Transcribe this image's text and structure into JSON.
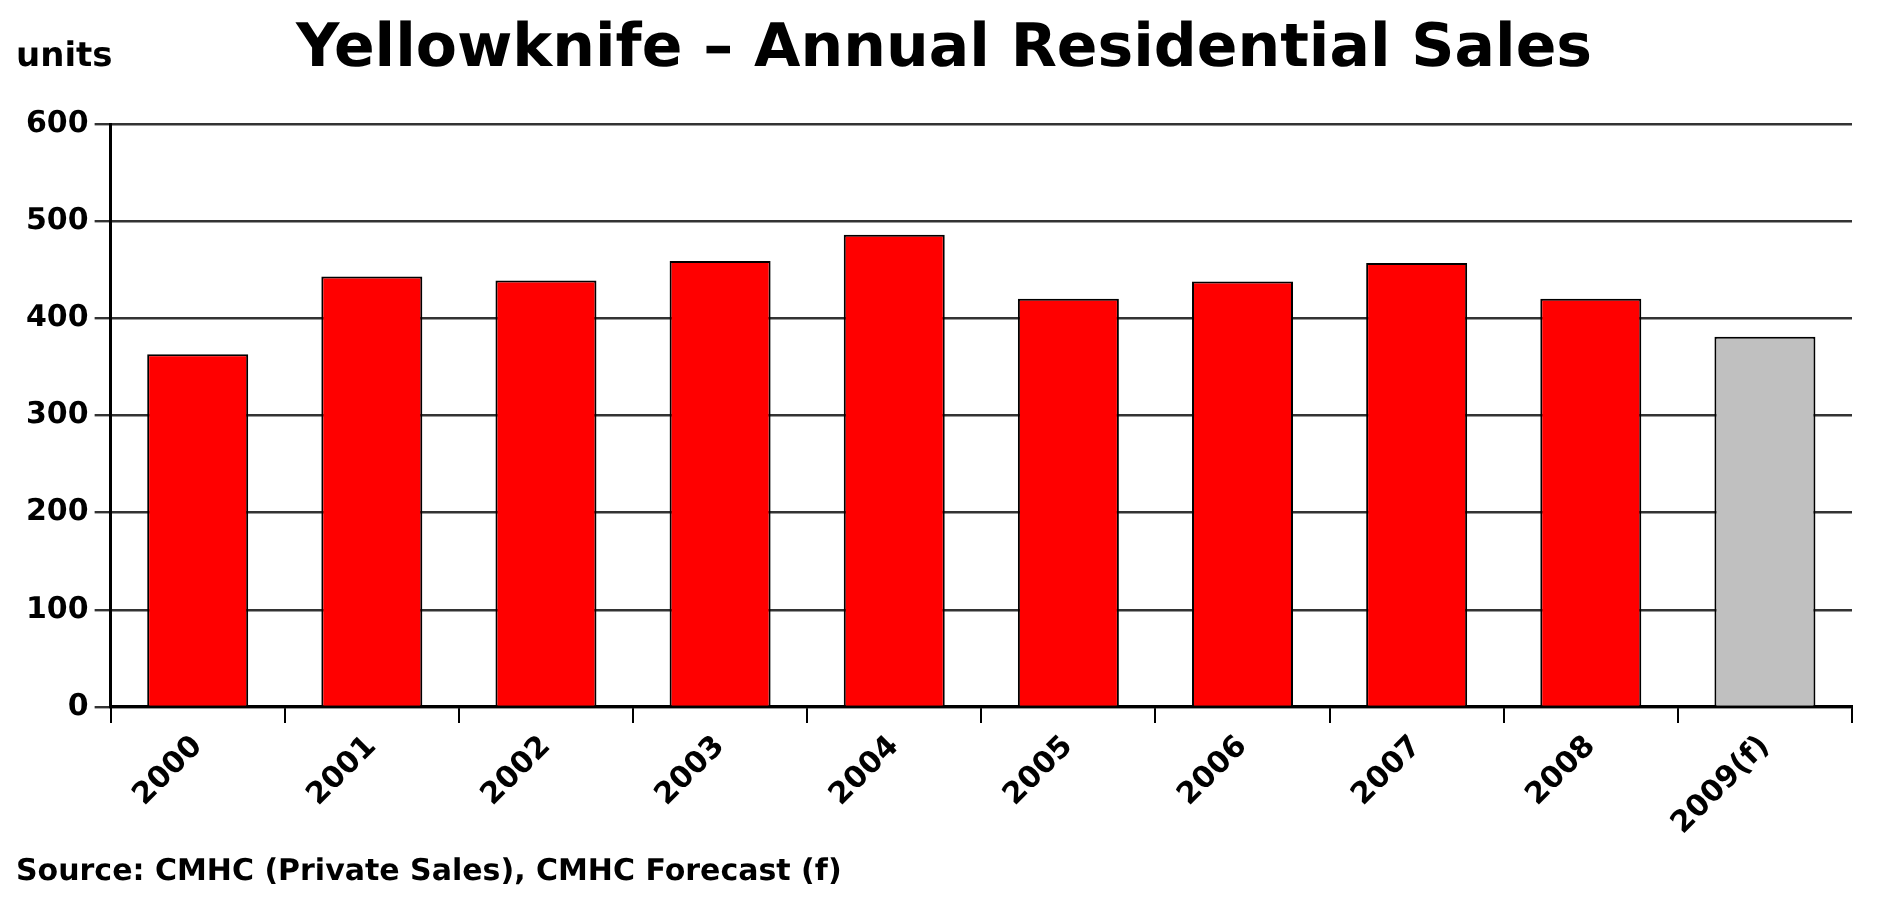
{
  "chart_data": {
    "type": "bar",
    "title": "Yellowknife – Annual Residential Sales",
    "ylabel": "units",
    "categories": [
      "2000",
      "2001",
      "2002",
      "2003",
      "2004",
      "2005",
      "2006",
      "2007",
      "2008",
      "2009(f)"
    ],
    "values": [
      363,
      443,
      439,
      459,
      486,
      420,
      438,
      457,
      420,
      381
    ],
    "colors": [
      "#ff0000",
      "#ff0000",
      "#ff0000",
      "#ff0000",
      "#ff0000",
      "#ff0000",
      "#ff0000",
      "#ff0000",
      "#ff0000",
      "#c0c0c0"
    ],
    "ylim": [
      0,
      600
    ],
    "yticks": [
      0,
      100,
      200,
      300,
      400,
      500,
      600
    ],
    "grid": "y",
    "annotations": [
      "Source:  CMHC (Private Sales), CMHC Forecast (f)"
    ]
  }
}
